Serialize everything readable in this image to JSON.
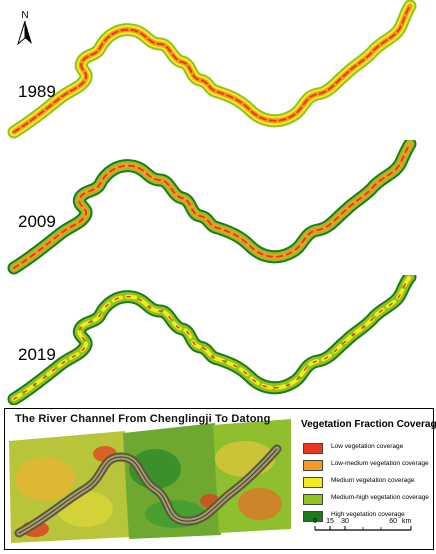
{
  "years": [
    "1989",
    "2009",
    "2019"
  ],
  "north_label": "N",
  "inset_title": "The River Channel From Chenglingji To Datong",
  "legend": {
    "title": "Vegetation Fraction Coverage",
    "items": [
      {
        "label": "Low vegetation coverage",
        "color": "#e8381e"
      },
      {
        "label": "Low-medium vegetation coverage",
        "color": "#f59a23"
      },
      {
        "label": "Medium vegetation coverage",
        "color": "#f3ec1d"
      },
      {
        "label": "Medium-high vegetation coverage",
        "color": "#8fc31f"
      },
      {
        "label": "High vegetation coverage",
        "color": "#1e7a1e"
      }
    ]
  },
  "scale_bar": {
    "ticks": [
      "0",
      "15",
      "30",
      "60"
    ],
    "unit": "km"
  }
}
